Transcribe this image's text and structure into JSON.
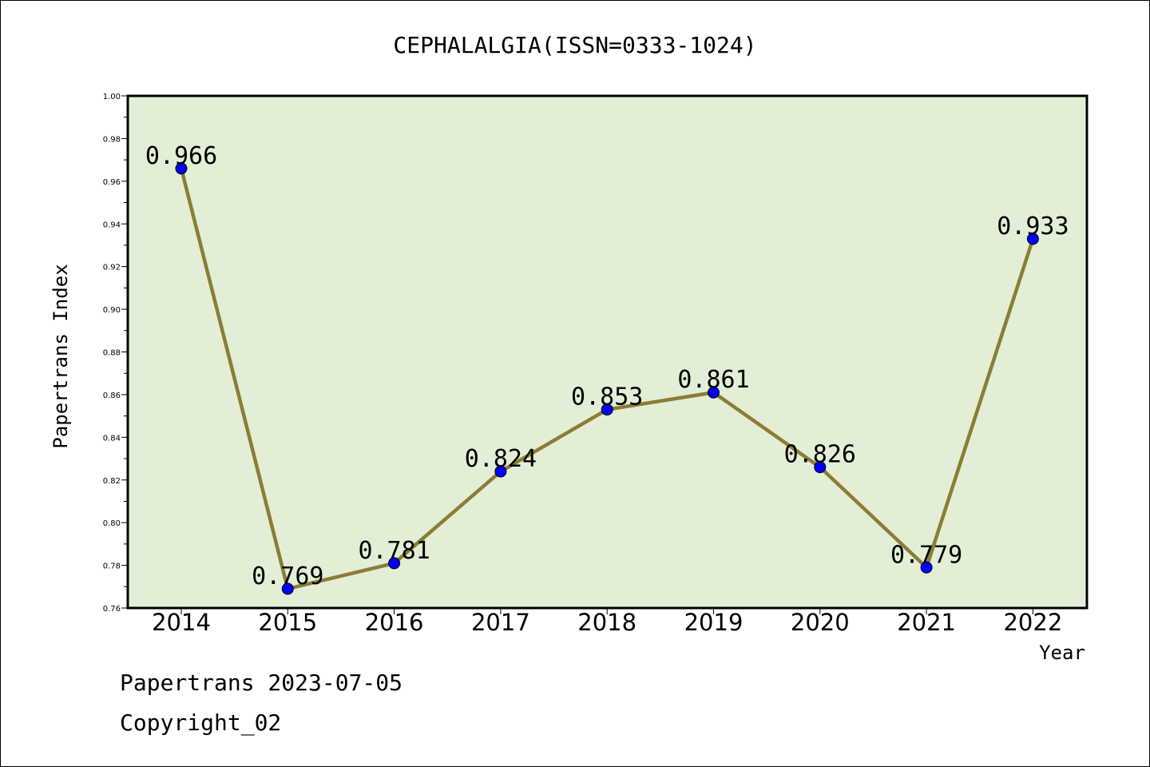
{
  "footer": {
    "line1": "Papertrans 2023-07-05",
    "line2": "Copyright_02"
  },
  "chart_data": {
    "type": "line",
    "title": "CEPHALALGIA(ISSN=0333-1024)",
    "xlabel": "Year",
    "ylabel": "Papertrans Index",
    "categories": [
      "2014",
      "2015",
      "2016",
      "2017",
      "2018",
      "2019",
      "2020",
      "2021",
      "2022"
    ],
    "values": [
      0.966,
      0.769,
      0.781,
      0.824,
      0.853,
      0.861,
      0.826,
      0.779,
      0.933
    ],
    "value_labels": [
      "0.966",
      "0.769",
      "0.781",
      "0.824",
      "0.853",
      "0.861",
      "0.826",
      "0.779",
      "0.933"
    ],
    "ylim": [
      0.76,
      1.0
    ],
    "yticks": [
      "0.76",
      "0.78",
      "0.80",
      "0.82",
      "0.84",
      "0.86",
      "0.88",
      "0.90",
      "0.92",
      "0.94",
      "0.96",
      "0.98",
      "1.00"
    ],
    "grid": false,
    "colors": {
      "plot_background": "#e2efd6",
      "line": "#8b7d35",
      "marker": "#0000ff"
    }
  }
}
